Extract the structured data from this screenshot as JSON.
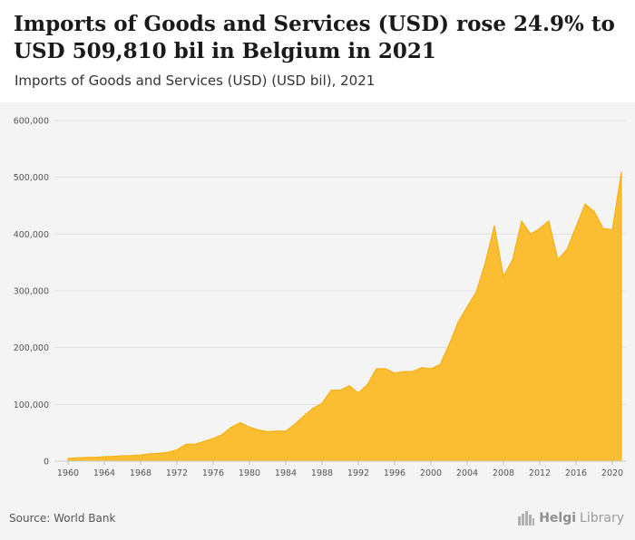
{
  "header": {
    "title": "Imports of Goods and Services (USD) rose 24.9% to USD 509,810 bil in Belgium in 2021",
    "subtitle": "Imports of Goods and Services (USD) (USD bil), 2021"
  },
  "footer": {
    "source": "Source: World Bank",
    "logo_text_1": "Helgi",
    "logo_text_2": "Library",
    "logo_icon": "city-skyline-icon"
  },
  "colors": {
    "area_fill": "#fbbd32",
    "area_stroke": "#f5ad0a",
    "gridline": "#e0e0e0",
    "plot_bg": "#f4f4f4"
  },
  "chart_data": {
    "type": "area",
    "title": "Imports of Goods and Services (USD) (USD bil), 2021",
    "xlabel": "",
    "ylabel": "",
    "ylim": [
      0,
      600000
    ],
    "yticks": [
      0,
      100000,
      200000,
      300000,
      400000,
      500000,
      600000
    ],
    "ytick_labels": [
      "0",
      "100,000",
      "200,000",
      "300,000",
      "400,000",
      "500,000",
      "600,000"
    ],
    "xticks": [
      1960,
      1964,
      1968,
      1972,
      1976,
      1980,
      1984,
      1988,
      1992,
      1996,
      2000,
      2004,
      2008,
      2012,
      2016,
      2020
    ],
    "xtick_labels": [
      "1960",
      "1964",
      "1968",
      "1972",
      "1976",
      "1980",
      "1984",
      "1988",
      "1992",
      "1996",
      "2000",
      "2004",
      "2008",
      "2012",
      "2016",
      "2020"
    ],
    "grid": true,
    "legend": "none",
    "x": [
      1960,
      1961,
      1962,
      1963,
      1964,
      1965,
      1966,
      1967,
      1968,
      1969,
      1970,
      1971,
      1972,
      1973,
      1974,
      1975,
      1976,
      1977,
      1978,
      1979,
      1980,
      1981,
      1982,
      1983,
      1984,
      1985,
      1986,
      1987,
      1988,
      1989,
      1990,
      1991,
      1992,
      1993,
      1994,
      1995,
      1996,
      1997,
      1998,
      1999,
      2000,
      2001,
      2002,
      2003,
      2004,
      2005,
      2006,
      2007,
      2008,
      2009,
      2010,
      2011,
      2012,
      2013,
      2014,
      2015,
      2016,
      2017,
      2018,
      2019,
      2020,
      2021
    ],
    "values": [
      5000,
      6000,
      6500,
      7000,
      8000,
      8500,
      9500,
      10000,
      11000,
      13000,
      14000,
      15500,
      20000,
      30000,
      30000,
      35000,
      40000,
      47000,
      60000,
      68000,
      60000,
      55000,
      52000,
      53000,
      53000,
      65000,
      80000,
      93000,
      102000,
      125000,
      125000,
      133000,
      120000,
      135000,
      163000,
      163000,
      155000,
      158000,
      158000,
      165000,
      163000,
      170000,
      205000,
      245000,
      272000,
      298000,
      350000,
      415000,
      325000,
      355000,
      423000,
      400000,
      410000,
      423000,
      355000,
      373000,
      413000,
      453000,
      440000,
      410000,
      408000,
      509810
    ]
  }
}
